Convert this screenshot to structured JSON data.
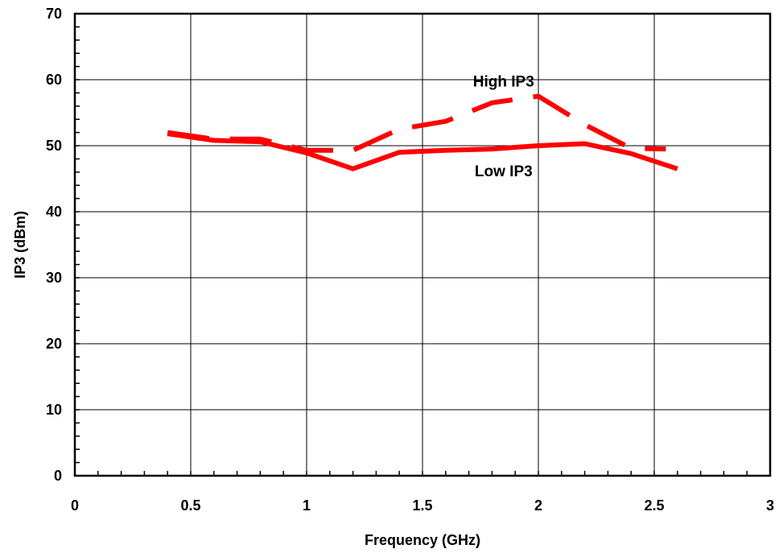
{
  "chart_data": {
    "type": "line",
    "title": "",
    "xlabel": "Frequency (GHz)",
    "ylabel": "IP3 (dBm)",
    "xlim": [
      0,
      3
    ],
    "ylim": [
      0,
      70
    ],
    "xticks": [
      "0",
      "0.5",
      "1",
      "1.5",
      "2",
      "2.5",
      "3"
    ],
    "yticks": [
      "0",
      "10",
      "20",
      "30",
      "40",
      "50",
      "60",
      "70"
    ],
    "grid": true,
    "line_color": "#ff0000",
    "series": [
      {
        "name": "High IP3",
        "style": "dashed",
        "x": [
          0.4,
          0.6,
          0.8,
          1.0,
          1.2,
          1.4,
          1.6,
          1.8,
          2.0,
          2.2,
          2.4,
          2.55
        ],
        "y": [
          52.0,
          51.0,
          51.0,
          49.3,
          49.3,
          52.5,
          53.7,
          56.5,
          57.5,
          53.2,
          49.6,
          49.5
        ]
      },
      {
        "name": "Low IP3",
        "style": "solid",
        "x": [
          0.4,
          0.6,
          0.8,
          1.0,
          1.2,
          1.4,
          1.6,
          1.8,
          2.0,
          2.2,
          2.4,
          2.6
        ],
        "y": [
          51.8,
          50.8,
          50.6,
          48.9,
          46.5,
          49.0,
          49.3,
          49.5,
          50.0,
          50.3,
          48.8,
          46.5
        ]
      }
    ],
    "annotations": [
      {
        "text": "High IP3",
        "x": 1.85,
        "y": 59.8
      },
      {
        "text": "Low IP3",
        "x": 1.85,
        "y": 46.2
      }
    ]
  }
}
